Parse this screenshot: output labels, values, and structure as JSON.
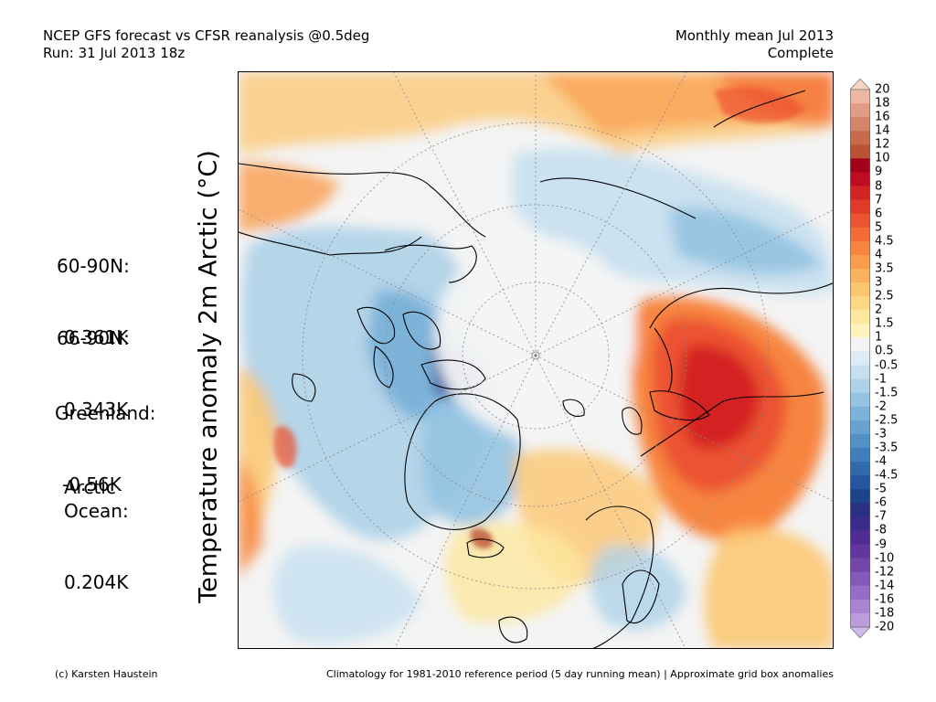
{
  "header": {
    "left_line1": "NCEP GFS forecast vs CFSR reanalysis @0.5deg",
    "left_line2": "Run: 31 Jul 2013 18z",
    "right_line1": "Monthly mean Jul 2013",
    "right_line2": "Complete"
  },
  "y_axis_label": "Temperature anomaly 2m Arctic (°C)",
  "stats": [
    {
      "label": "60-90N:",
      "value": "0.361K"
    },
    {
      "label": "66-90N:",
      "value": "0.343K"
    },
    {
      "label": "Greenland:",
      "value": "-0.56K"
    },
    {
      "label": "Arctic\nOcean:",
      "value": "0.204K"
    }
  ],
  "colorbar": {
    "labels": [
      "20",
      "18",
      "16",
      "14",
      "12",
      "10",
      "9",
      "8",
      "7",
      "6",
      "5",
      "4.5",
      "4",
      "3.5",
      "3",
      "2.5",
      "2",
      "1.5",
      "1",
      "0.5",
      "-0.5",
      "-1",
      "-1.5",
      "-2",
      "-2.5",
      "-3",
      "-3.5",
      "-4",
      "-4.5",
      "-5",
      "-6",
      "-7",
      "-8",
      "-9",
      "-10",
      "-12",
      "-14",
      "-16",
      "-18",
      "-20"
    ],
    "colors": [
      "#f7d3c3",
      "#ecb8a2",
      "#e09d84",
      "#d48468",
      "#c86b4d",
      "#bb5236",
      "#a3001a",
      "#be0d1e",
      "#d42324",
      "#e03a28",
      "#ec5330",
      "#f36c35",
      "#f7853f",
      "#f99c4c",
      "#fbb25d",
      "#fcc66f",
      "#fdd884",
      "#fde79d",
      "#fef2bf",
      "#f4f4f4",
      "#dcebf6",
      "#c6e0f0",
      "#aed2e8",
      "#95c3e1",
      "#7db3d9",
      "#67a2d0",
      "#5290c6",
      "#3f7dbb",
      "#3069ae",
      "#25559f",
      "#1e438e",
      "#2b2f86",
      "#3d2b8c",
      "#502d95",
      "#63369f",
      "#7446ac",
      "#8559ba",
      "#966cc6",
      "#a884d1",
      "#bb9cdc",
      "#cfb9e8"
    ]
  },
  "footer": {
    "left": "(c) Karsten Haustein",
    "right": "Climatology for 1981-2010 reference period (5 day running mean) | Approximate grid box anomalies"
  }
}
